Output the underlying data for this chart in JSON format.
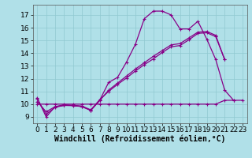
{
  "xlabel": "Windchill (Refroidissement éolien,°C)",
  "bg_color": "#b0e0e8",
  "grid_color": "#90c8d0",
  "line_color": "#880088",
  "xlim_min": -0.5,
  "xlim_max": 23.5,
  "ylim_min": 8.5,
  "ylim_max": 17.8,
  "xticks": [
    0,
    1,
    2,
    3,
    4,
    5,
    6,
    7,
    8,
    9,
    10,
    11,
    12,
    13,
    14,
    15,
    16,
    17,
    18,
    19,
    20,
    21,
    22,
    23
  ],
  "yticks": [
    9,
    10,
    11,
    12,
    13,
    14,
    15,
    16,
    17
  ],
  "curve_x": [
    0,
    1,
    2,
    3,
    4,
    5,
    6,
    7,
    8,
    9,
    10,
    11,
    12,
    13,
    14,
    15,
    16,
    17,
    18,
    19,
    20,
    21,
    22
  ],
  "curve_y": [
    10.5,
    9.0,
    9.8,
    9.9,
    9.9,
    9.8,
    9.5,
    10.3,
    11.7,
    12.1,
    13.3,
    14.7,
    16.7,
    17.3,
    17.3,
    17.0,
    15.9,
    15.9,
    16.5,
    15.1,
    13.5,
    11.1,
    10.3
  ],
  "flat_x": [
    0,
    1,
    2,
    3,
    4,
    5,
    6,
    7,
    8,
    9,
    10,
    11,
    12,
    13,
    14,
    15,
    16,
    17,
    18,
    19,
    20,
    21,
    22,
    23
  ],
  "flat_y": [
    10.0,
    10.0,
    10.0,
    10.0,
    10.0,
    10.0,
    10.0,
    10.0,
    10.0,
    10.0,
    10.0,
    10.0,
    10.0,
    10.0,
    10.0,
    10.0,
    10.0,
    10.0,
    10.0,
    10.0,
    10.0,
    10.3,
    10.3,
    10.3
  ],
  "diag1_x": [
    0,
    1,
    2,
    3,
    4,
    5,
    6,
    7,
    8,
    9,
    10,
    11,
    12,
    13,
    14,
    15,
    16,
    17,
    18,
    19,
    20,
    21
  ],
  "diag1_y": [
    10.2,
    9.4,
    9.8,
    9.95,
    9.9,
    9.85,
    9.55,
    10.35,
    11.0,
    11.55,
    12.05,
    12.6,
    13.1,
    13.55,
    14.05,
    14.5,
    14.6,
    15.05,
    15.55,
    15.6,
    15.3,
    13.5
  ],
  "diag2_x": [
    0,
    1,
    2,
    3,
    4,
    5,
    6,
    7,
    8,
    9,
    10,
    11,
    12,
    13,
    14,
    15,
    16,
    17,
    18,
    19,
    20,
    21
  ],
  "diag2_y": [
    10.4,
    9.2,
    9.75,
    9.9,
    9.88,
    9.82,
    9.52,
    10.28,
    11.1,
    11.65,
    12.2,
    12.75,
    13.25,
    13.75,
    14.2,
    14.65,
    14.75,
    15.2,
    15.65,
    15.7,
    15.4,
    13.5
  ],
  "xlabel_fontsize": 7,
  "tick_fontsize": 6.5,
  "figsize": [
    3.2,
    2.0
  ],
  "dpi": 100
}
